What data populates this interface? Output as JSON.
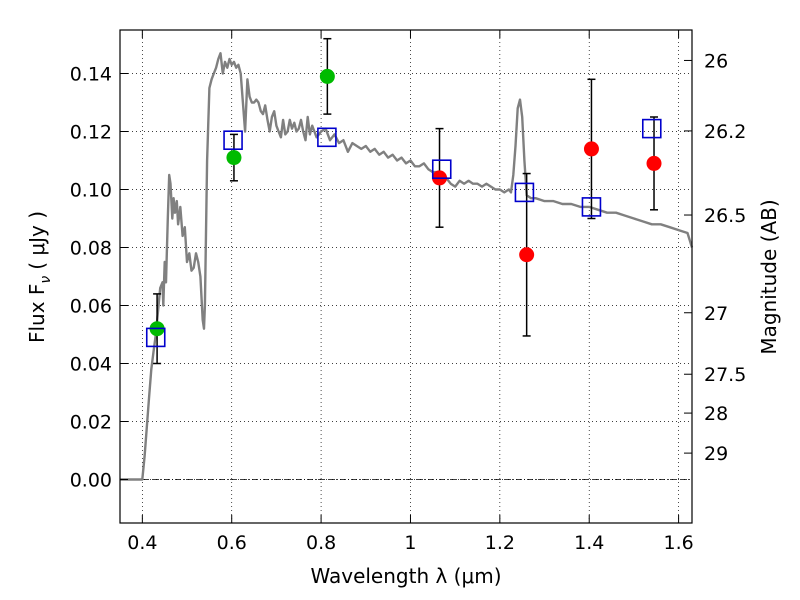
{
  "chart_data": {
    "type": "scatter",
    "xlabel": "Wavelength  λ (μm)",
    "ylabel_left": "Flux  F",
    "ylabel_left_subscript": "ν",
    "ylabel_left_unit": "( μJy )",
    "ylabel_right": "Magnitude (AB)",
    "xlim": [
      0.35,
      1.63
    ],
    "ylim": [
      -0.015,
      0.155
    ],
    "grid": "dotted",
    "x_ticks": [
      0.4,
      0.6,
      0.8,
      1.0,
      1.2,
      1.4,
      1.6
    ],
    "x_tick_labels": [
      "0.4",
      "0.6",
      "0.8",
      "1",
      "1.2",
      "1.4",
      "1.6"
    ],
    "y_ticks": [
      0.0,
      0.02,
      0.04,
      0.06,
      0.08,
      0.1,
      0.12,
      0.14
    ],
    "y_tick_labels": [
      "0.00",
      "0.02",
      "0.04",
      "0.06",
      "0.08",
      "0.10",
      "0.12",
      "0.14"
    ],
    "right_ticks": [
      {
        "label": "26",
        "flux": 0.1445
      },
      {
        "label": "26.2",
        "flux": 0.1202
      },
      {
        "label": "26.5",
        "flux": 0.0912
      },
      {
        "label": "27",
        "flux": 0.0575
      },
      {
        "label": "27.5",
        "flux": 0.0363
      },
      {
        "label": "28",
        "flux": 0.0229
      },
      {
        "label": "29",
        "flux": 0.0091
      }
    ],
    "colors": {
      "model": "#808080",
      "green": "#00bb00",
      "red": "#ff0000",
      "box": "#0000cc",
      "error": "#000000"
    },
    "series": [
      {
        "kind": "line",
        "color": "gray",
        "points": [
          [
            0.35,
            0.0
          ],
          [
            0.4,
            0.0
          ],
          [
            0.405,
            0.008
          ],
          [
            0.41,
            0.018
          ],
          [
            0.415,
            0.028
          ],
          [
            0.42,
            0.038
          ],
          [
            0.425,
            0.044
          ],
          [
            0.43,
            0.05
          ],
          [
            0.435,
            0.058
          ],
          [
            0.44,
            0.066
          ],
          [
            0.445,
            0.068
          ],
          [
            0.447,
            0.06
          ],
          [
            0.45,
            0.075
          ],
          [
            0.453,
            0.068
          ],
          [
            0.457,
            0.09
          ],
          [
            0.46,
            0.105
          ],
          [
            0.463,
            0.102
          ],
          [
            0.467,
            0.09
          ],
          [
            0.47,
            0.097
          ],
          [
            0.473,
            0.092
          ],
          [
            0.477,
            0.096
          ],
          [
            0.48,
            0.088
          ],
          [
            0.485,
            0.094
          ],
          [
            0.49,
            0.084
          ],
          [
            0.495,
            0.087
          ],
          [
            0.5,
            0.075
          ],
          [
            0.505,
            0.078
          ],
          [
            0.51,
            0.072
          ],
          [
            0.515,
            0.073
          ],
          [
            0.52,
            0.078
          ],
          [
            0.525,
            0.075
          ],
          [
            0.53,
            0.07
          ],
          [
            0.535,
            0.055
          ],
          [
            0.538,
            0.052
          ],
          [
            0.54,
            0.06
          ],
          [
            0.545,
            0.11
          ],
          [
            0.55,
            0.135
          ],
          [
            0.555,
            0.138
          ],
          [
            0.56,
            0.14
          ],
          [
            0.565,
            0.142
          ],
          [
            0.57,
            0.145
          ],
          [
            0.575,
            0.147
          ],
          [
            0.58,
            0.14
          ],
          [
            0.585,
            0.144
          ],
          [
            0.59,
            0.142
          ],
          [
            0.595,
            0.145
          ],
          [
            0.6,
            0.143
          ],
          [
            0.605,
            0.144
          ],
          [
            0.61,
            0.142
          ],
          [
            0.615,
            0.143
          ],
          [
            0.62,
            0.14
          ],
          [
            0.625,
            0.13
          ],
          [
            0.63,
            0.12
          ],
          [
            0.635,
            0.138
          ],
          [
            0.64,
            0.132
          ],
          [
            0.645,
            0.13
          ],
          [
            0.65,
            0.13
          ],
          [
            0.655,
            0.131
          ],
          [
            0.66,
            0.13
          ],
          [
            0.665,
            0.127
          ],
          [
            0.67,
            0.126
          ],
          [
            0.675,
            0.129
          ],
          [
            0.68,
            0.124
          ],
          [
            0.685,
            0.12
          ],
          [
            0.69,
            0.125
          ],
          [
            0.695,
            0.127
          ],
          [
            0.7,
            0.122
          ],
          [
            0.705,
            0.12
          ],
          [
            0.71,
            0.118
          ],
          [
            0.715,
            0.124
          ],
          [
            0.72,
            0.119
          ],
          [
            0.725,
            0.12
          ],
          [
            0.73,
            0.124
          ],
          [
            0.735,
            0.121
          ],
          [
            0.74,
            0.123
          ],
          [
            0.745,
            0.12
          ],
          [
            0.75,
            0.121
          ],
          [
            0.755,
            0.124
          ],
          [
            0.76,
            0.12
          ],
          [
            0.765,
            0.117
          ],
          [
            0.77,
            0.125
          ],
          [
            0.775,
            0.119
          ],
          [
            0.78,
            0.122
          ],
          [
            0.785,
            0.12
          ],
          [
            0.79,
            0.118
          ],
          [
            0.8,
            0.12
          ],
          [
            0.81,
            0.121
          ],
          [
            0.82,
            0.117
          ],
          [
            0.83,
            0.119
          ],
          [
            0.84,
            0.116
          ],
          [
            0.85,
            0.117
          ],
          [
            0.86,
            0.113
          ],
          [
            0.87,
            0.116
          ],
          [
            0.88,
            0.115
          ],
          [
            0.89,
            0.114
          ],
          [
            0.9,
            0.115
          ],
          [
            0.91,
            0.113
          ],
          [
            0.92,
            0.114
          ],
          [
            0.93,
            0.112
          ],
          [
            0.94,
            0.113
          ],
          [
            0.95,
            0.111
          ],
          [
            0.96,
            0.112
          ],
          [
            0.97,
            0.11
          ],
          [
            0.98,
            0.111
          ],
          [
            0.99,
            0.109
          ],
          [
            1.0,
            0.11
          ],
          [
            1.01,
            0.108
          ],
          [
            1.02,
            0.108
          ],
          [
            1.03,
            0.109
          ],
          [
            1.04,
            0.107
          ],
          [
            1.05,
            0.106
          ],
          [
            1.06,
            0.106
          ],
          [
            1.07,
            0.105
          ],
          [
            1.08,
            0.104
          ],
          [
            1.09,
            0.102
          ],
          [
            1.1,
            0.101
          ],
          [
            1.11,
            0.103
          ],
          [
            1.12,
            0.102
          ],
          [
            1.13,
            0.103
          ],
          [
            1.14,
            0.102
          ],
          [
            1.15,
            0.102
          ],
          [
            1.16,
            0.101
          ],
          [
            1.17,
            0.102
          ],
          [
            1.18,
            0.101
          ],
          [
            1.19,
            0.1
          ],
          [
            1.2,
            0.1
          ],
          [
            1.21,
            0.099
          ],
          [
            1.22,
            0.1
          ],
          [
            1.225,
            0.099
          ],
          [
            1.23,
            0.105
          ],
          [
            1.235,
            0.115
          ],
          [
            1.24,
            0.128
          ],
          [
            1.245,
            0.131
          ],
          [
            1.25,
            0.125
          ],
          [
            1.255,
            0.11
          ],
          [
            1.26,
            0.098
          ],
          [
            1.27,
            0.097
          ],
          [
            1.28,
            0.097
          ],
          [
            1.3,
            0.096
          ],
          [
            1.32,
            0.096
          ],
          [
            1.34,
            0.095
          ],
          [
            1.36,
            0.095
          ],
          [
            1.38,
            0.094
          ],
          [
            1.4,
            0.094
          ],
          [
            1.42,
            0.093
          ],
          [
            1.44,
            0.092
          ],
          [
            1.46,
            0.092
          ],
          [
            1.48,
            0.091
          ],
          [
            1.5,
            0.09
          ],
          [
            1.52,
            0.089
          ],
          [
            1.54,
            0.088
          ],
          [
            1.56,
            0.088
          ],
          [
            1.58,
            0.087
          ],
          [
            1.6,
            0.086
          ],
          [
            1.62,
            0.085
          ],
          [
            1.63,
            0.08
          ]
        ]
      },
      {
        "kind": "points",
        "color": "green",
        "points": [
          {
            "x": 0.433,
            "y": 0.052,
            "err": 0.012
          },
          {
            "x": 0.605,
            "y": 0.111,
            "err": 0.008
          },
          {
            "x": 0.814,
            "y": 0.139,
            "err": 0.013
          }
        ]
      },
      {
        "kind": "points",
        "color": "red",
        "points": [
          {
            "x": 1.065,
            "y": 0.104,
            "err": 0.017
          },
          {
            "x": 1.26,
            "y": 0.0775,
            "err": 0.028
          },
          {
            "x": 1.405,
            "y": 0.114,
            "err": 0.024
          },
          {
            "x": 1.545,
            "y": 0.109,
            "err": 0.016
          }
        ]
      },
      {
        "kind": "boxes",
        "color": "blue",
        "points": [
          {
            "x": 0.43,
            "y": 0.049
          },
          {
            "x": 0.603,
            "y": 0.117
          },
          {
            "x": 0.813,
            "y": 0.118
          },
          {
            "x": 1.07,
            "y": 0.107
          },
          {
            "x": 1.255,
            "y": 0.099
          },
          {
            "x": 1.405,
            "y": 0.094
          },
          {
            "x": 1.54,
            "y": 0.121
          }
        ]
      }
    ]
  }
}
